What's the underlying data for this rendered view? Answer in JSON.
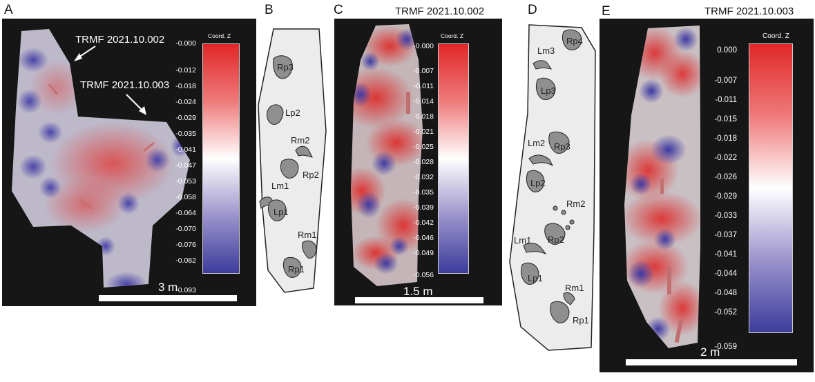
{
  "panels": {
    "a": {
      "label": "A",
      "annotation_1": "TRMF 2021.10.002",
      "annotation_2": "TRMF 2021.10.003",
      "colorbar_title": "Coord. Z",
      "ticks": [
        "-0.000",
        "-0.012",
        "-0.018",
        "-0.024",
        "-0.029",
        "-0.035",
        "-0.041",
        "-0.047",
        "-0.053",
        "-0.058",
        "-0.064",
        "-0.070",
        "-0.076",
        "-0.082",
        "-0.093"
      ],
      "scale": "3 m"
    },
    "b": {
      "label": "B",
      "tracks": [
        "Rp3",
        "Lp2",
        "Rm2",
        "Rp2",
        "Lm1",
        "Lp1",
        "Rm1",
        "Rp1"
      ]
    },
    "c": {
      "label": "C",
      "title": "TRMF 2021.10.002",
      "colorbar_title": "Coord. Z",
      "ticks": [
        "-0.000",
        "-0.007",
        "-0.011",
        "-0.014",
        "-0.018",
        "-0.021",
        "-0.025",
        "-0.028",
        "-0.032",
        "-0.035",
        "-0.039",
        "-0.042",
        "-0.046",
        "-0.049",
        "-0.056"
      ],
      "scale": "1.5 m"
    },
    "d": {
      "label": "D",
      "tracks": [
        "Rp4",
        "Lm3",
        "Lp3",
        "Lm2",
        "Rp3",
        "Lp2",
        "Rm2",
        "Rp2",
        "Lm1",
        "Lp1",
        "Rm1",
        "Rp1"
      ]
    },
    "e": {
      "label": "E",
      "title": "TRMF 2021.10.003",
      "colorbar_title": "Coord. Z",
      "ticks": [
        "0.000",
        "-0.007",
        "-0.011",
        "-0.015",
        "-0.018",
        "-0.022",
        "-0.026",
        "-0.029",
        "-0.033",
        "-0.037",
        "-0.041",
        "-0.044",
        "-0.048",
        "-0.052",
        "-0.059"
      ],
      "scale": "2 m"
    }
  },
  "colors": {
    "background": "#161616",
    "high": "#e02727",
    "mid": "#ffffff",
    "low": "#3c3c9c",
    "sketch_fill": "#ececec",
    "track_fill": "#8f8f8f"
  }
}
